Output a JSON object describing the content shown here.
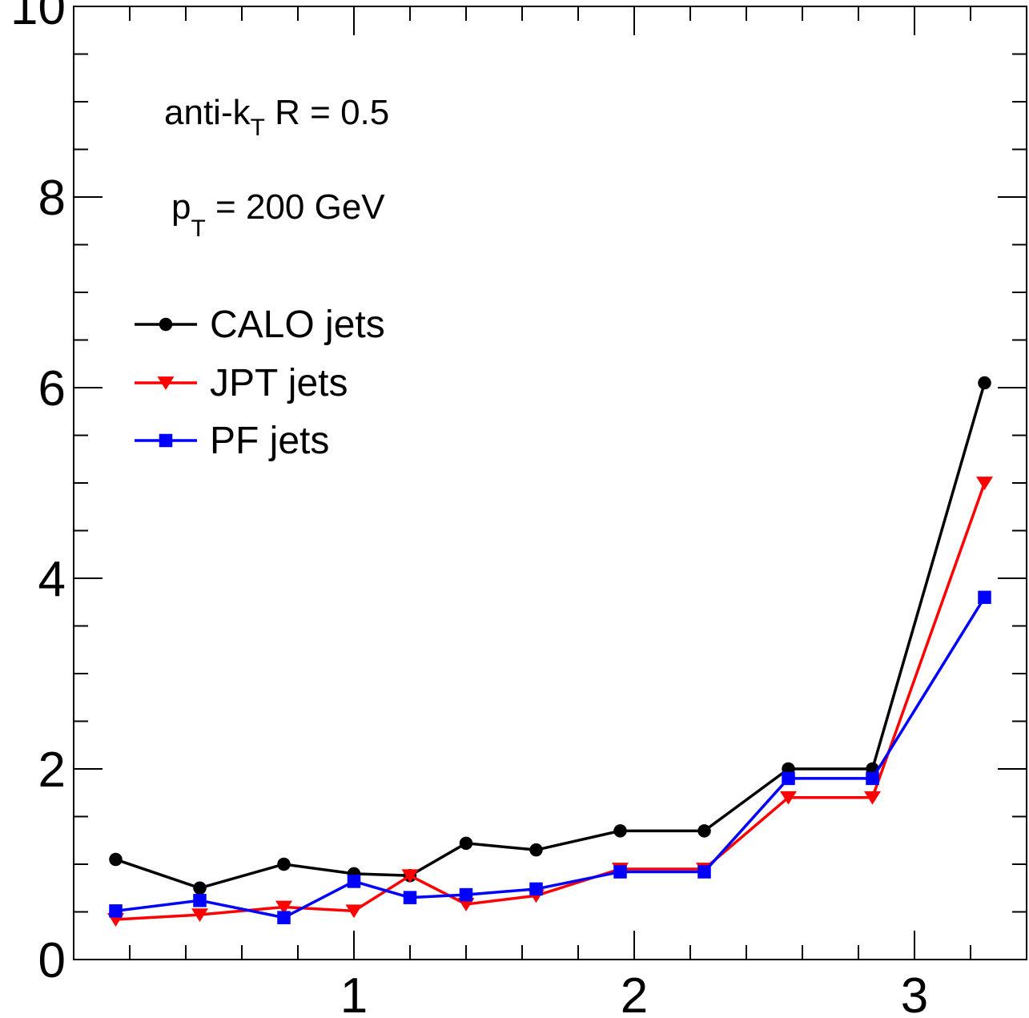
{
  "chart_data": {
    "type": "line",
    "title": "",
    "xlabel": "",
    "ylabel": "",
    "xlim": [
      0.0,
      3.4
    ],
    "ylim": [
      0,
      10
    ],
    "x_ticks": [
      {
        "value": 1,
        "label": "1"
      },
      {
        "value": 2,
        "label": "2"
      },
      {
        "value": 3,
        "label": "3"
      }
    ],
    "y_ticks": [
      {
        "value": 0,
        "label": "0"
      },
      {
        "value": 2,
        "label": "2"
      },
      {
        "value": 4,
        "label": "4"
      },
      {
        "value": 6,
        "label": "6"
      },
      {
        "value": 8,
        "label": "8"
      },
      {
        "value": 10,
        "label": "10"
      }
    ],
    "annotations": {
      "algo_prefix": "anti-k",
      "algo_sub": "T",
      "algo_suffix": " R = 0.5",
      "pt_prefix": "p",
      "pt_sub": "T",
      "pt_suffix": " = 200 GeV"
    },
    "legend_position": "upper-left",
    "series": [
      {
        "name": "CALO jets",
        "color": "#000000",
        "marker": "circle",
        "points": [
          [
            0.15,
            1.05
          ],
          [
            0.45,
            0.75
          ],
          [
            0.75,
            1.0
          ],
          [
            1.0,
            0.9
          ],
          [
            1.2,
            0.88
          ],
          [
            1.4,
            1.22
          ],
          [
            1.65,
            1.15
          ],
          [
            1.95,
            1.35
          ],
          [
            2.25,
            1.35
          ],
          [
            2.55,
            2.0
          ],
          [
            2.85,
            2.0
          ],
          [
            3.25,
            6.05
          ]
        ]
      },
      {
        "name": "JPT jets",
        "color": "#ff0000",
        "marker": "triangle-down",
        "points": [
          [
            0.15,
            0.42
          ],
          [
            0.45,
            0.47
          ],
          [
            0.75,
            0.55
          ],
          [
            1.0,
            0.51
          ],
          [
            1.2,
            0.88
          ],
          [
            1.4,
            0.58
          ],
          [
            1.65,
            0.67
          ],
          [
            1.95,
            0.95
          ],
          [
            2.25,
            0.95
          ],
          [
            2.55,
            1.7
          ],
          [
            2.85,
            1.7
          ],
          [
            3.25,
            5.0
          ]
        ]
      },
      {
        "name": "PF jets",
        "color": "#0000ff",
        "marker": "square",
        "points": [
          [
            0.15,
            0.51
          ],
          [
            0.45,
            0.62
          ],
          [
            0.75,
            0.44
          ],
          [
            1.0,
            0.82
          ],
          [
            1.2,
            0.65
          ],
          [
            1.4,
            0.68
          ],
          [
            1.65,
            0.74
          ],
          [
            1.95,
            0.92
          ],
          [
            2.25,
            0.92
          ],
          [
            2.55,
            1.9
          ],
          [
            2.85,
            1.9
          ],
          [
            3.25,
            3.8
          ]
        ]
      }
    ]
  }
}
